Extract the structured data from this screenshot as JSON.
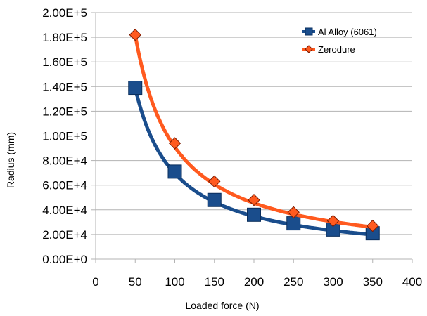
{
  "chart_data": {
    "type": "line",
    "title": "",
    "xlabel": "Loaded force (N)",
    "ylabel": "Radius (mm)",
    "xlim": [
      0,
      400
    ],
    "ylim": [
      0,
      200000
    ],
    "x_ticks": [
      0,
      50,
      100,
      150,
      200,
      250,
      300,
      350,
      400
    ],
    "x_tick_labels": [
      "0",
      "50",
      "100",
      "150",
      "200",
      "250",
      "300",
      "350",
      "400"
    ],
    "y_ticks": [
      0,
      20000,
      40000,
      60000,
      80000,
      100000,
      120000,
      140000,
      160000,
      180000,
      200000
    ],
    "y_tick_labels": [
      "0.00E+0",
      "2.00E+4",
      "4.00E+4",
      "6.00E+4",
      "8.00E+4",
      "1.00E+5",
      "1.20E+5",
      "1.40E+5",
      "1.60E+5",
      "1.80E+5",
      "2.00E+5"
    ],
    "grid": "horizontal",
    "legend_position": "top-right",
    "series": [
      {
        "name": "Al Alloy (6061)",
        "color": "#1a4d8c",
        "marker": "square",
        "x": [
          50,
          100,
          150,
          200,
          250,
          300,
          350
        ],
        "values": [
          139000,
          71000,
          48000,
          36000,
          29000,
          24000,
          21000
        ]
      },
      {
        "name": "Zerodure",
        "color": "#ff5a1f",
        "marker": "diamond",
        "x": [
          50,
          100,
          150,
          200,
          250,
          300,
          350
        ],
        "values": [
          182000,
          94000,
          63000,
          48000,
          38000,
          31000,
          27000
        ]
      }
    ]
  }
}
